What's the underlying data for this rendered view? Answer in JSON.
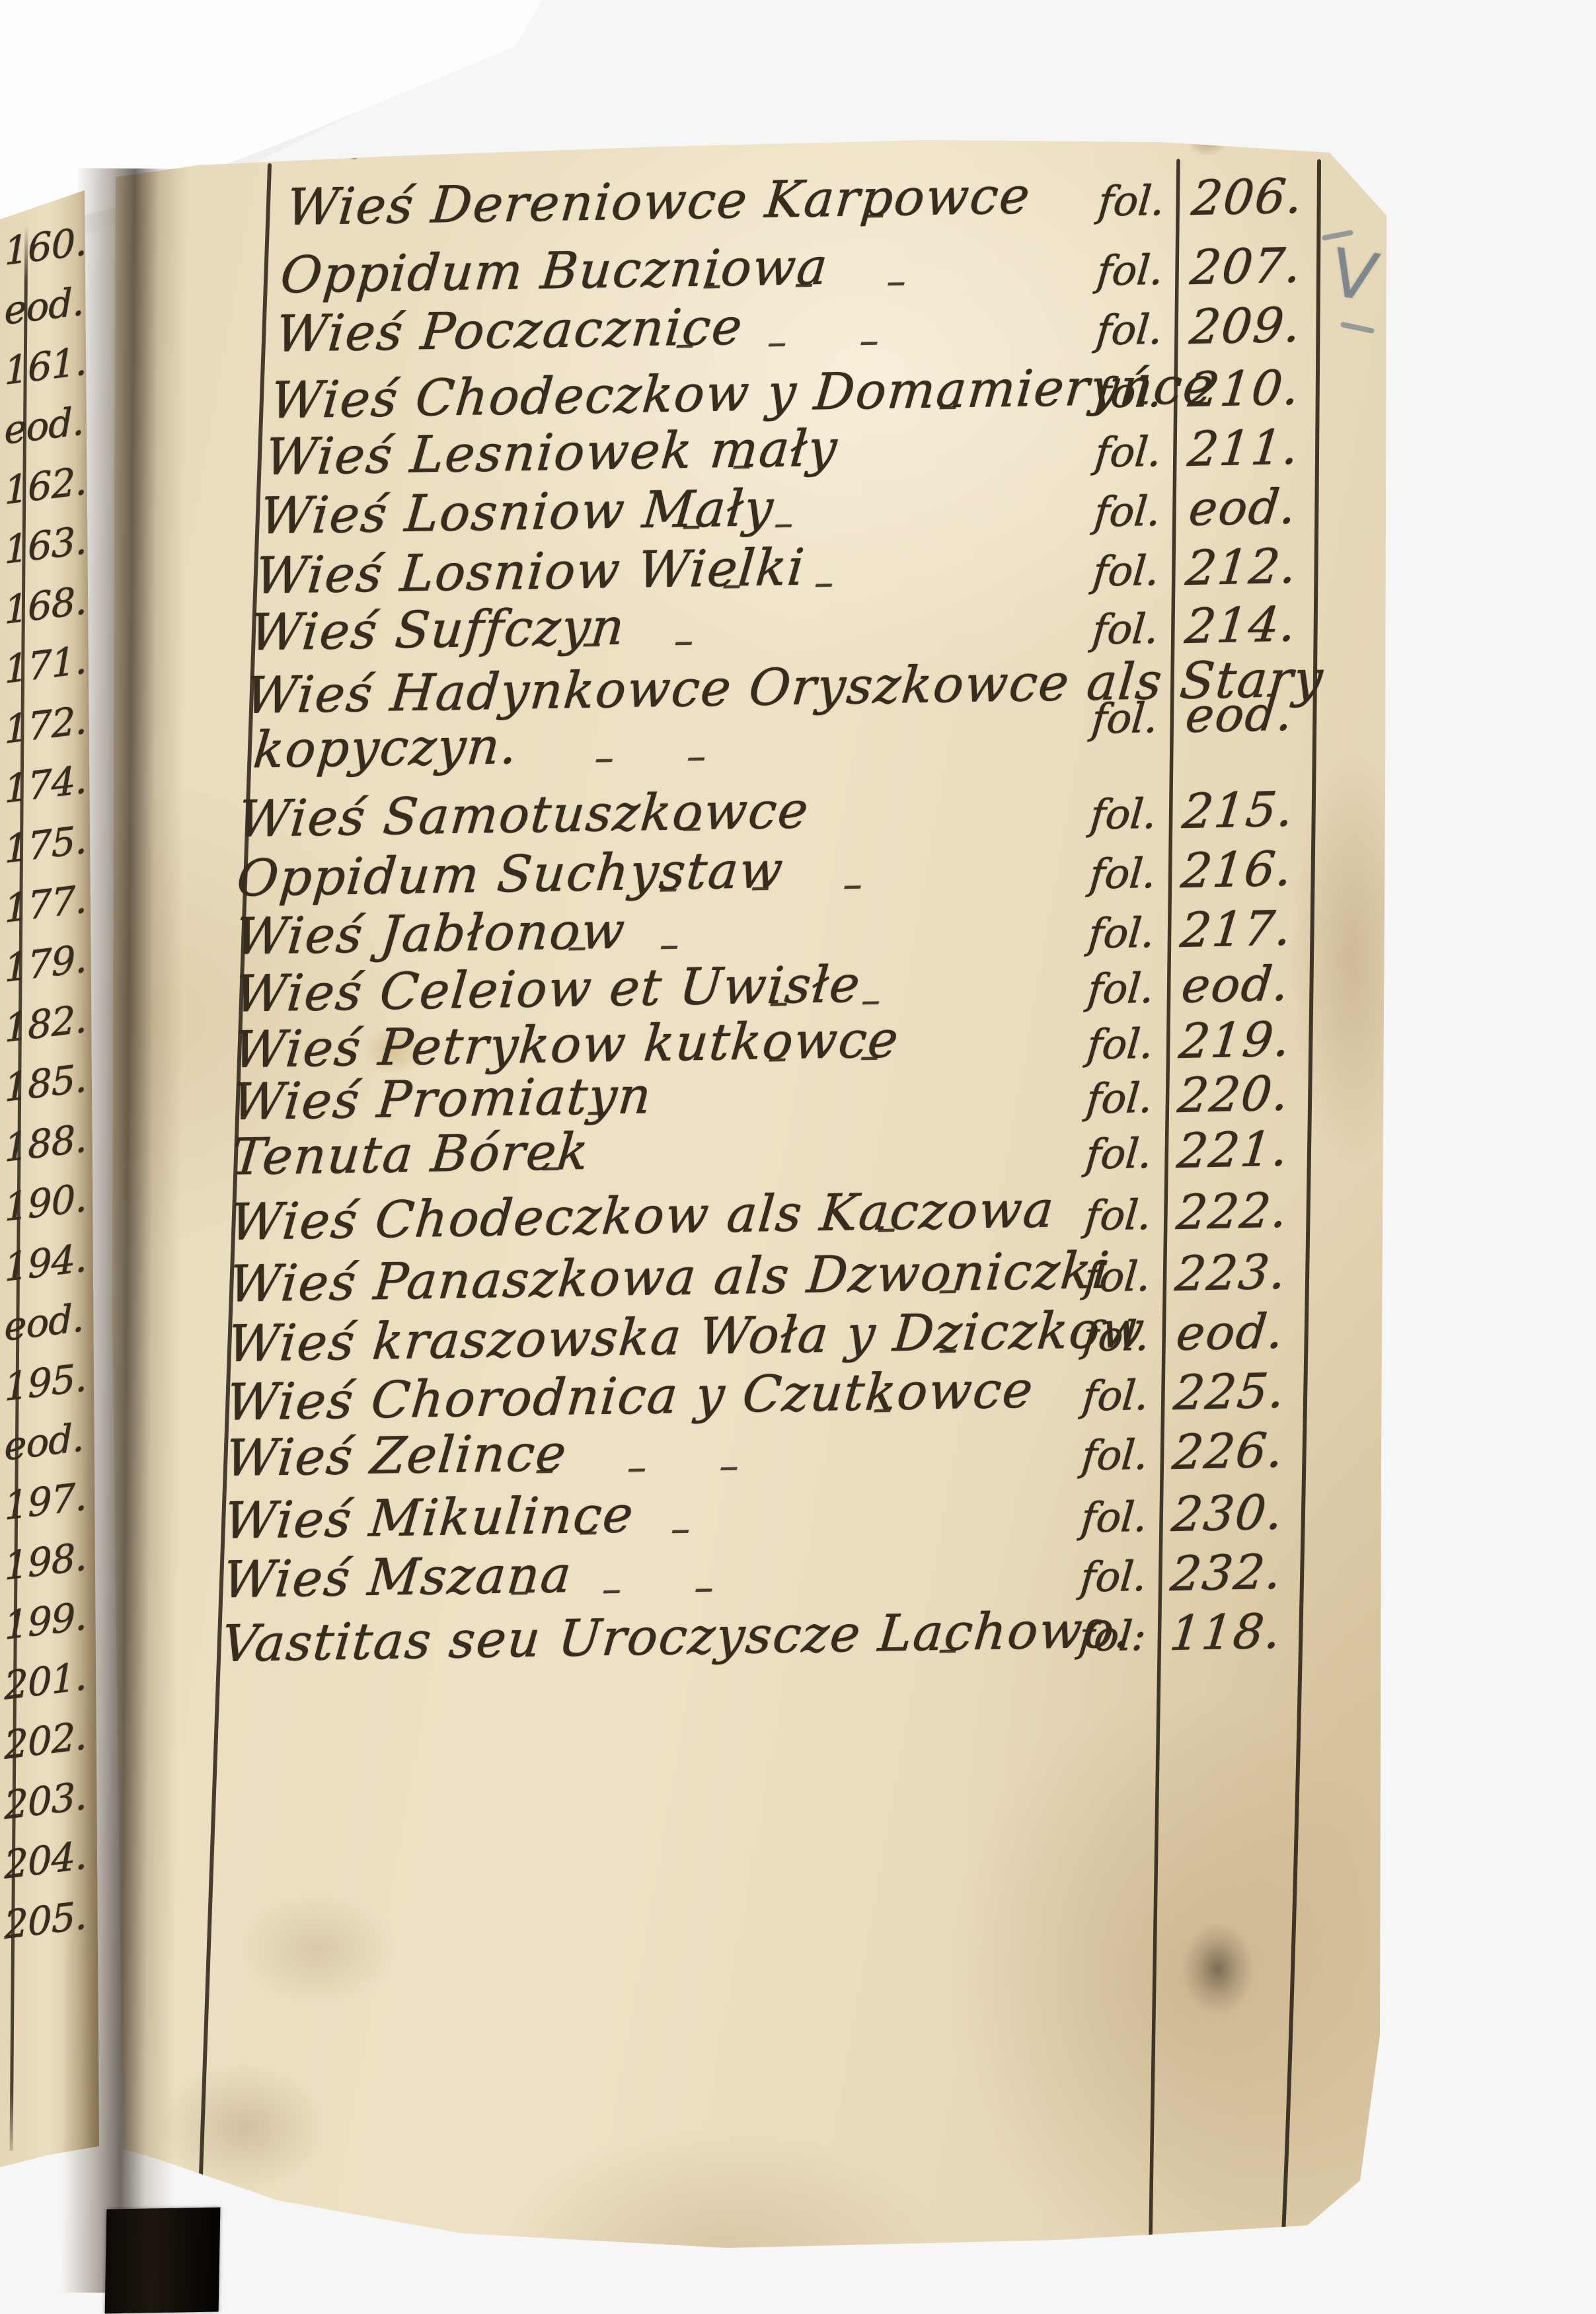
{
  "scan": {
    "pencil_mark": "V",
    "marginalia_prev_page_folios": [
      "160.",
      "eod.",
      "161.",
      "eod.",
      "162.",
      "163.",
      "168.",
      "171.",
      "172.",
      "174.",
      "175.",
      "177.",
      "179.",
      "182.",
      "185.",
      "188.",
      "190.",
      "194.",
      "eod.",
      "195.",
      "eod.",
      "197.",
      "198.",
      "199.",
      "201.",
      "202.",
      "203.",
      "204.",
      "205."
    ],
    "index_rows": [
      {
        "name": "Wieś Dereniowce Karpowce",
        "dashes": "–",
        "fol": "fol.",
        "folio": "206."
      },
      {
        "name": "Oppidum Buczniowa",
        "dashes": "–  –  –",
        "fol": "fol.",
        "folio": "207."
      },
      {
        "name": "Wieś Poczacznice",
        "dashes": "–  –  –",
        "fol": "fol.",
        "folio": "209."
      },
      {
        "name": "Wieś Chodeczkow y Domamieryńce",
        "dashes": "–",
        "fol": "fol.",
        "folio": "210."
      },
      {
        "name": "Wieś Lesniowek mały",
        "dashes": "–",
        "fol": "fol.",
        "folio": "211."
      },
      {
        "name": "Wieś Losniow Mały",
        "dashes": "–  –",
        "fol": "fol.",
        "folio": "eod."
      },
      {
        "name": "Wieś Losniow Wielki",
        "dashes": "–  –",
        "fol": "fol.",
        "folio": "212."
      },
      {
        "name": "Wieś Suffczyn",
        "dashes": "–  –",
        "fol": "fol.",
        "folio": "214."
      },
      {
        "name": "Wieś Hadynkowce Oryszkowce als Stary",
        "name_line2": "kopyczyn.",
        "dashes": "–  –",
        "fol": "fol.",
        "folio": "eod."
      },
      {
        "name": "Wieś Samotuszkowce",
        "dashes": "–",
        "fol": "fol.",
        "folio": "215."
      },
      {
        "name": "Oppidum Suchystaw",
        "dashes": "–  –  –",
        "fol": "fol.",
        "folio": "216."
      },
      {
        "name": "Wieś Jabłonow",
        "dashes": "–  –",
        "fol": "fol.",
        "folio": "217."
      },
      {
        "name": "Wieś Celeiow et Uwisłe",
        "dashes": "–  –",
        "fol": "fol.",
        "folio": "eod."
      },
      {
        "name": "Wieś Petrykow kutkowce",
        "dashes": "–  –",
        "fol": "fol.",
        "folio": "219."
      },
      {
        "name": "Wieś Promiatyn",
        "dashes": "–",
        "fol": "fol.",
        "folio": "220."
      },
      {
        "name": "Tenuta Bórek",
        "dashes": "–",
        "fol": "fol.",
        "folio": "221."
      },
      {
        "name": "Wieś Chodeczkow als Kaczowa",
        "dashes": "–",
        "fol": "fol.",
        "folio": "222."
      },
      {
        "name": "Wieś Panaszkowa als Dzwoniczki",
        "dashes": "–",
        "fol": "fol.",
        "folio": "223."
      },
      {
        "name": "Wieś kraszowska Woła y Dziczkow",
        "dashes": "–",
        "fol": "fol.",
        "folio": "eod."
      },
      {
        "name": "Wieś Chorodnica y Czutkowce",
        "dashes": "–",
        "fol": "fol.",
        "folio": "225."
      },
      {
        "name": "Wieś Zelince",
        "dashes": "–  –  –",
        "fol": "fol.",
        "folio": "226."
      },
      {
        "name": "Wieś Mikulince",
        "dashes": "–  –",
        "fol": "fol.",
        "folio": "230."
      },
      {
        "name": "Wieś Mszana",
        "dashes": "–  –  –",
        "fol": "fol.",
        "folio": "232."
      },
      {
        "name": "Vastitas seu Uroczyscze Lachowo.",
        "dashes": "–",
        "fol": "fol:",
        "folio": "118."
      }
    ]
  },
  "colors": {
    "ink": "#372c1d",
    "paper": "#e8dabb",
    "pencil": "#6f7987",
    "ribbon": "#161009"
  }
}
